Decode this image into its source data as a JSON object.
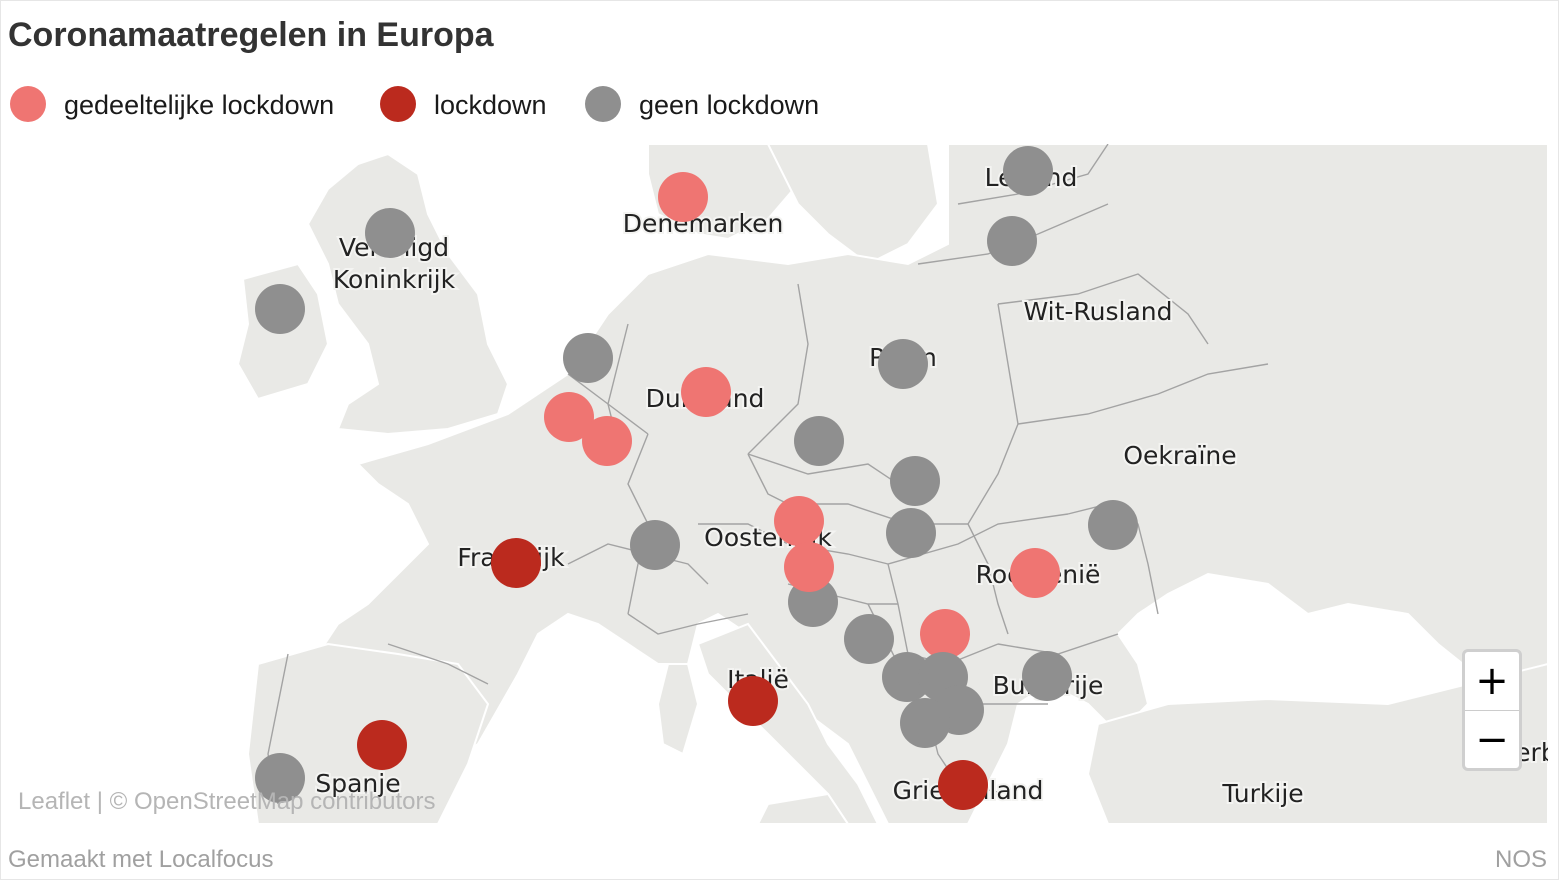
{
  "title": "Coronamaatregelen in Europa",
  "legend": [
    {
      "label": "gedeeltelijke lockdown",
      "color": "#ef7572"
    },
    {
      "label": "lockdown",
      "color": "#bb2a1e"
    },
    {
      "label": "geen lockdown",
      "color": "#8f8f8f"
    }
  ],
  "map_labels": [
    "Verenigd",
    "Koninkrijk",
    "Denemarken",
    "Letland",
    "Wit-Rusland",
    "Polen",
    "Duitsland",
    "Oekraïne",
    "Oostenrijk",
    "Frankrijk",
    "Roemenië",
    "Italië",
    "Bulgarije",
    "Spanje",
    "Griekenland",
    "Turkije",
    "Serb"
  ],
  "markers": [
    {
      "country": "Denemarken",
      "status": "gedeeltelijke lockdown"
    },
    {
      "country": "Letland",
      "status": "geen lockdown"
    },
    {
      "country": "Litouwen",
      "status": "geen lockdown"
    },
    {
      "country": "Verenigd Koninkrijk",
      "status": "geen lockdown"
    },
    {
      "country": "Ierland",
      "status": "geen lockdown"
    },
    {
      "country": "Nederland",
      "status": "geen lockdown"
    },
    {
      "country": "Duitsland",
      "status": "gedeeltelijke lockdown"
    },
    {
      "country": "Polen",
      "status": "geen lockdown"
    },
    {
      "country": "België",
      "status": "gedeeltelijke lockdown"
    },
    {
      "country": "Luxemburg",
      "status": "gedeeltelijke lockdown"
    },
    {
      "country": "Tsjechië",
      "status": "geen lockdown"
    },
    {
      "country": "Slowakije",
      "status": "geen lockdown"
    },
    {
      "country": "Hongarije",
      "status": "geen lockdown"
    },
    {
      "country": "Oostenrijk",
      "status": "gedeeltelijke lockdown"
    },
    {
      "country": "Zwitserland",
      "status": "geen lockdown"
    },
    {
      "country": "Frankrijk",
      "status": "lockdown"
    },
    {
      "country": "Slovenië",
      "status": "geen lockdown"
    },
    {
      "country": "Kroatië",
      "status": "gedeeltelijke lockdown"
    },
    {
      "country": "Moldavië",
      "status": "geen lockdown"
    },
    {
      "country": "Roemenië",
      "status": "gedeeltelijke lockdown"
    },
    {
      "country": "Servië",
      "status": "gedeeltelijke lockdown"
    },
    {
      "country": "Bosnië",
      "status": "geen lockdown"
    },
    {
      "country": "Montenegro",
      "status": "geen lockdown"
    },
    {
      "country": "Kosovo",
      "status": "geen lockdown"
    },
    {
      "country": "Noord-Macedonië",
      "status": "geen lockdown"
    },
    {
      "country": "Albanië",
      "status": "geen lockdown"
    },
    {
      "country": "Bulgarije",
      "status": "geen lockdown"
    },
    {
      "country": "Italië",
      "status": "lockdown"
    },
    {
      "country": "Spanje",
      "status": "lockdown"
    },
    {
      "country": "Portugal",
      "status": "geen lockdown"
    },
    {
      "country": "Griekenland",
      "status": "lockdown"
    }
  ],
  "zoom": {
    "in": "+",
    "out": "−"
  },
  "attribution": "Leaflet | © OpenStreetMap contributors",
  "footer": {
    "left": "Gemaakt met Localfocus",
    "right": "NOS"
  }
}
